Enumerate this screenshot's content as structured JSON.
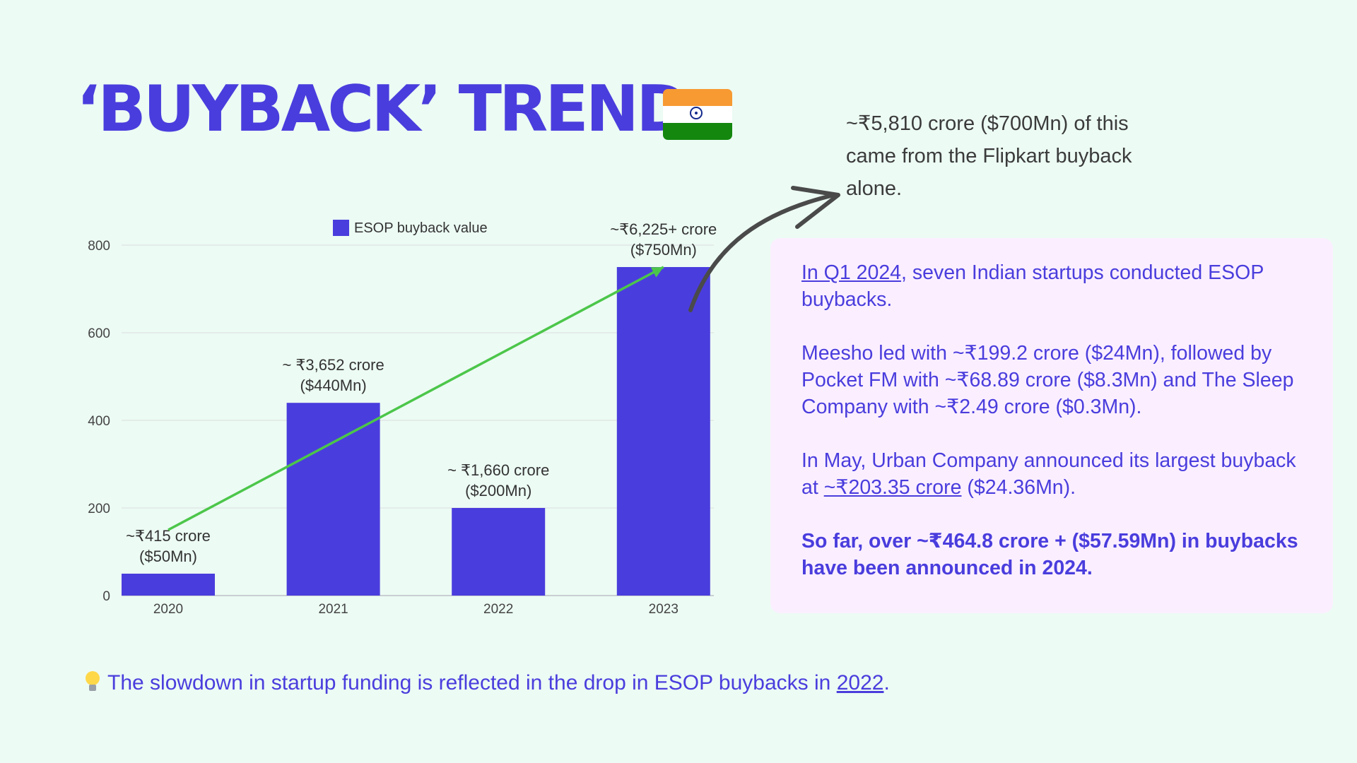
{
  "title": "‘BUYBACK’ TREND",
  "flag_icon": "india-flag-icon",
  "note": "~₹5,810 crore ($700Mn) of this came from the Flipkart buyback alone.",
  "info": {
    "p1_link": "In Q1 2024",
    "p1_rest": ", seven Indian startups conducted ESOP buybacks.",
    "p2": "Meesho led with ~₹199.2 crore ($24Mn), followed by Pocket FM with ~₹68.89 crore ($8.3Mn) and The Sleep Company with ~₹2.49 crore ($0.3Mn).",
    "p3_pre": "In May, Urban Company announced its largest buyback at ",
    "p3_link": "~₹203.35 crore",
    "p3_post": " ($24.36Mn).",
    "p4": "So far, over ~₹464.8 crore + ($57.59Mn) in buybacks have been announced in 2024."
  },
  "footer": {
    "icon": "lightbulb-icon",
    "text_pre": "The slowdown in startup funding is reflected in the drop in ESOP buybacks in ",
    "text_link": "2022",
    "text_post": "."
  },
  "colors": {
    "bar": "#4a3ddd",
    "trend": "#4cc64a",
    "background": "#ecfbf4",
    "panel": "#fbefff"
  },
  "chart_data": {
    "type": "bar",
    "categories": [
      "2020",
      "2021",
      "2022",
      "2023"
    ],
    "series": [
      {
        "name": "ESOP buyback value",
        "values": [
          50,
          440,
          200,
          750
        ]
      }
    ],
    "data_labels": [
      [
        "~₹415 crore",
        "($50Mn)"
      ],
      [
        "~ ₹3,652 crore",
        "($440Mn)"
      ],
      [
        "~ ₹1,660 crore",
        "($200Mn)"
      ],
      [
        "~₹6,225+ crore",
        "($750Mn)"
      ]
    ],
    "yticks": [
      0,
      200,
      400,
      600,
      800
    ],
    "ylim": [
      0,
      800
    ],
    "grid": true,
    "legend": "top-center",
    "trend_line": {
      "from_category": "2020",
      "from_value": 150,
      "to_category": "2023",
      "to_value": 750
    }
  }
}
